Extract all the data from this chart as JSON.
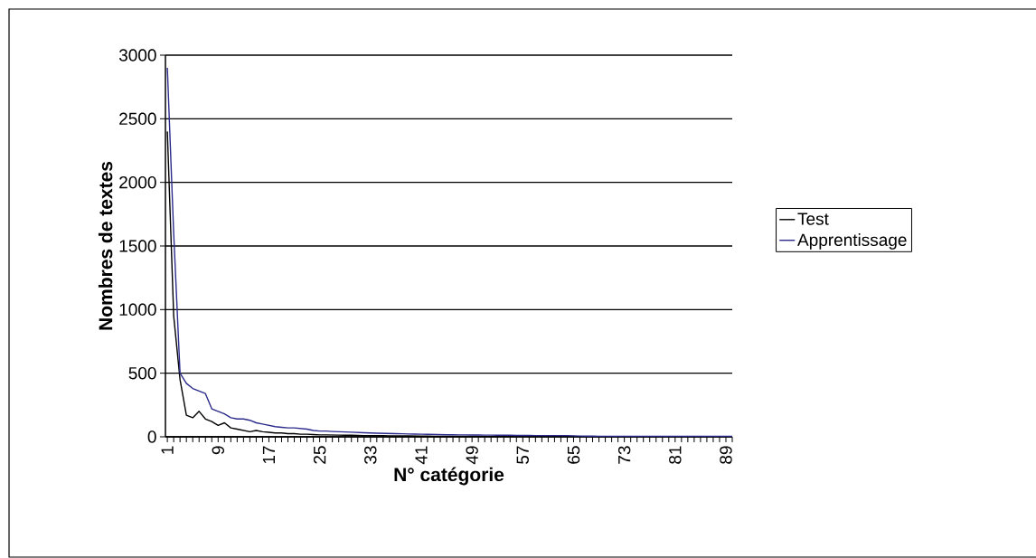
{
  "chart_data": {
    "type": "line",
    "xlabel": "N° catégorie",
    "ylabel": "Nombres de textes",
    "categories": [
      "1",
      null,
      null,
      null,
      null,
      null,
      null,
      null,
      "9",
      null,
      null,
      null,
      null,
      null,
      null,
      null,
      "17",
      null,
      null,
      null,
      null,
      null,
      null,
      null,
      "25",
      null,
      null,
      null,
      null,
      null,
      null,
      null,
      "33",
      null,
      null,
      null,
      null,
      null,
      null,
      null,
      "41",
      null,
      null,
      null,
      null,
      null,
      null,
      null,
      "49",
      null,
      null,
      null,
      null,
      null,
      null,
      null,
      "57",
      null,
      null,
      null,
      null,
      null,
      null,
      null,
      "65",
      null,
      null,
      null,
      null,
      null,
      null,
      null,
      "73",
      null,
      null,
      null,
      null,
      null,
      null,
      null,
      "81",
      null,
      null,
      null,
      null,
      null,
      null,
      null,
      "89",
      null
    ],
    "series": [
      {
        "name": "Test",
        "color": "#000000",
        "values": [
          2400,
          950,
          450,
          170,
          150,
          200,
          140,
          120,
          90,
          110,
          70,
          60,
          50,
          40,
          50,
          40,
          35,
          30,
          30,
          25,
          25,
          20,
          20,
          18,
          15,
          15,
          14,
          13,
          12,
          12,
          11,
          10,
          10,
          9,
          9,
          8,
          8,
          7,
          7,
          6,
          5,
          5,
          4,
          4,
          4,
          3,
          3,
          3,
          3,
          3,
          2,
          2,
          2,
          2,
          2,
          2,
          2,
          2,
          2,
          2,
          2,
          2,
          2,
          1,
          1,
          1,
          1,
          1,
          1,
          1,
          1,
          1,
          1,
          1,
          1,
          1,
          1,
          1,
          1,
          1,
          1,
          1,
          1,
          1,
          1,
          1,
          1,
          1,
          1,
          1
        ]
      },
      {
        "name": "Apprentissage",
        "color": "#2b2b8c",
        "values": [
          2900,
          1600,
          500,
          420,
          380,
          360,
          340,
          220,
          200,
          180,
          150,
          140,
          140,
          130,
          110,
          100,
          90,
          80,
          75,
          70,
          70,
          65,
          60,
          50,
          45,
          45,
          42,
          40,
          38,
          36,
          34,
          32,
          30,
          28,
          27,
          26,
          25,
          24,
          22,
          21,
          20,
          19,
          18,
          17,
          16,
          16,
          15,
          15,
          14,
          14,
          13,
          13,
          12,
          12,
          12,
          11,
          11,
          11,
          10,
          10,
          10,
          10,
          10,
          10,
          8,
          6,
          5,
          5,
          4,
          4,
          4,
          4,
          4,
          3,
          3,
          3,
          3,
          3,
          3,
          3,
          3,
          3,
          3,
          3,
          3,
          3,
          3,
          3,
          3,
          3
        ]
      }
    ],
    "ylim": [
      0,
      3000
    ],
    "yticks": [
      0,
      500,
      1000,
      1500,
      2000,
      2500,
      3000
    ],
    "grid": "y",
    "legend": "right",
    "marker": "none",
    "line_style": "solid"
  }
}
